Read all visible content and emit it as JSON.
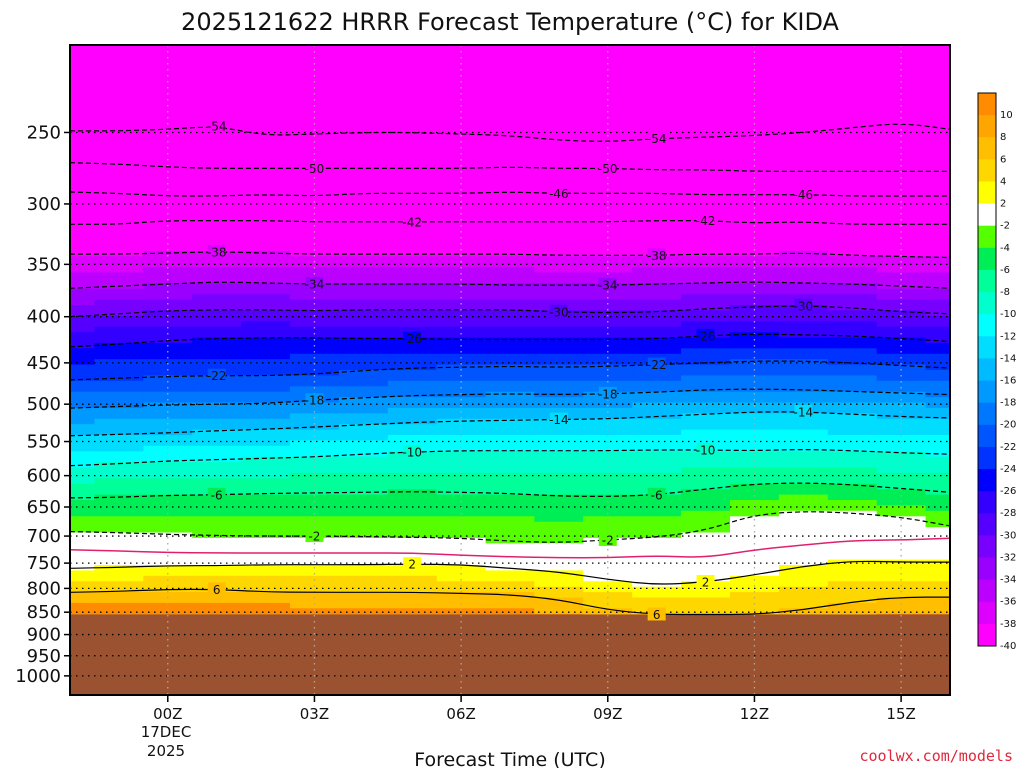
{
  "chart_data": {
    "type": "heatmap",
    "title": "2025121622 HRRR Forecast Temperature (°C) for KIDA",
    "xlabel": "Forecast Time (UTC)",
    "ylabel": "",
    "x_ticks": [
      "00Z",
      "03Z",
      "06Z",
      "09Z",
      "12Z",
      "15Z"
    ],
    "x_tick_hours": [
      0,
      3,
      6,
      9,
      12,
      15
    ],
    "x_range_hours": [
      -2,
      16
    ],
    "date_label_line1": "17DEC",
    "date_label_line2": "2025",
    "y_ticks": [
      250,
      300,
      350,
      400,
      450,
      500,
      550,
      600,
      650,
      700,
      750,
      800,
      850,
      900,
      950,
      1000
    ],
    "y_scale": "log (pressure, hPa, inverted)",
    "y_range_hpa": [
      200,
      1050
    ],
    "ground_level_hpa": 855,
    "colorbar_ticks": [
      10,
      8,
      6,
      4,
      2,
      -2,
      -4,
      -6,
      -8,
      -10,
      -12,
      -14,
      -16,
      -18,
      -20,
      -22,
      -24,
      -26,
      -28,
      -30,
      -32,
      -34,
      -36,
      -38,
      -40
    ],
    "colorbar_colors": [
      "#ff8c00",
      "#ffa500",
      "#ffbe00",
      "#ffd700",
      "#ffff00",
      "#ffffff",
      "#55ff00",
      "#00ee55",
      "#00ff99",
      "#00ffcc",
      "#00ffff",
      "#00ddff",
      "#00bbff",
      "#0099ff",
      "#0077ff",
      "#0055ff",
      "#0033ff",
      "#0000ff",
      "#3300ff",
      "#5500ff",
      "#7700ff",
      "#9900ff",
      "#bb00ff",
      "#dd00ff",
      "#ff00ff"
    ],
    "isotherms": [
      {
        "value": -54,
        "p": [
          249,
          249,
          248,
          246,
          252,
          251,
          250,
          250,
          251,
          252,
          255,
          256,
          254,
          253,
          252,
          250,
          247,
          244,
          248
        ]
      },
      {
        "value": -50,
        "p": [
          270,
          271,
          273,
          274,
          274,
          274,
          274,
          274,
          274,
          273,
          274,
          274,
          275,
          275,
          276,
          276,
          276,
          276,
          276
        ]
      },
      {
        "value": -46,
        "p": [
          291,
          292,
          294,
          294,
          293,
          294,
          292,
          292,
          292,
          291,
          292,
          292,
          292,
          293,
          293,
          293,
          294,
          294,
          294
        ]
      },
      {
        "value": -42,
        "p": [
          316,
          316,
          313,
          313,
          313,
          314,
          314,
          314,
          314,
          314,
          314,
          314,
          313,
          313,
          315,
          314,
          316,
          316,
          316
        ]
      },
      {
        "value": -38,
        "p": [
          341,
          341,
          340,
          339,
          340,
          341,
          341,
          341,
          341,
          341,
          342,
          342,
          342,
          341,
          341,
          340,
          342,
          343,
          344
        ]
      },
      {
        "value": -34,
        "p": [
          372,
          370,
          368,
          366,
          367,
          368,
          368,
          368,
          368,
          369,
          369,
          369,
          368,
          367,
          366,
          367,
          368,
          370,
          372
        ]
      },
      {
        "value": -30,
        "p": [
          400,
          397,
          394,
          393,
          393,
          394,
          393,
          393,
          393,
          393,
          395,
          396,
          395,
          392,
          390,
          389,
          391,
          395,
          397
        ]
      },
      {
        "value": -26,
        "p": [
          432,
          429,
          425,
          423,
          422,
          422,
          423,
          423,
          424,
          424,
          424,
          424,
          423,
          420,
          418,
          419,
          420,
          423,
          426
        ]
      },
      {
        "value": -22,
        "p": [
          470,
          468,
          466,
          465,
          465,
          463,
          459,
          456,
          455,
          454,
          455,
          454,
          452,
          450,
          448,
          448,
          450,
          453,
          456
        ]
      },
      {
        "value": -18,
        "p": [
          505,
          503,
          501,
          500,
          499,
          495,
          492,
          489,
          488,
          487,
          488,
          487,
          485,
          482,
          481,
          482,
          484,
          486,
          488
        ]
      },
      {
        "value": -14,
        "p": [
          542,
          540,
          538,
          535,
          533,
          530,
          527,
          524,
          522,
          521,
          520,
          519,
          516,
          513,
          510,
          510,
          513,
          516,
          518
        ]
      },
      {
        "value": -10,
        "p": [
          585,
          582,
          578,
          576,
          574,
          572,
          568,
          565,
          563,
          563,
          563,
          563,
          562,
          562,
          563,
          561,
          563,
          566,
          568
        ]
      },
      {
        "value": -6,
        "p": [
          635,
          634,
          631,
          630,
          628,
          627,
          626,
          625,
          626,
          628,
          632,
          633,
          630,
          621,
          613,
          611,
          614,
          620,
          626
        ]
      },
      {
        "value": -2,
        "p": [
          692,
          694,
          697,
          699,
          700,
          700,
          701,
          702,
          704,
          709,
          712,
          707,
          702,
          690,
          663,
          657,
          660,
          667,
          682
        ]
      },
      {
        "value": 0,
        "p": [
          725,
          727,
          730,
          731,
          731,
          731,
          731,
          731,
          735,
          738,
          740,
          740,
          736,
          740,
          725,
          716,
          708,
          707,
          704
        ]
      },
      {
        "value": 2,
        "p": [
          760,
          758,
          755,
          755,
          753,
          753,
          753,
          752,
          753,
          760,
          767,
          782,
          793,
          787,
          773,
          756,
          746,
          748,
          748
        ]
      },
      {
        "value": 6,
        "p": [
          808,
          806,
          802,
          802,
          807,
          808,
          808,
          808,
          810,
          813,
          823,
          845,
          855,
          855,
          855,
          845,
          828,
          818,
          818
        ]
      }
    ]
  },
  "credit": "coolwx.com/models"
}
